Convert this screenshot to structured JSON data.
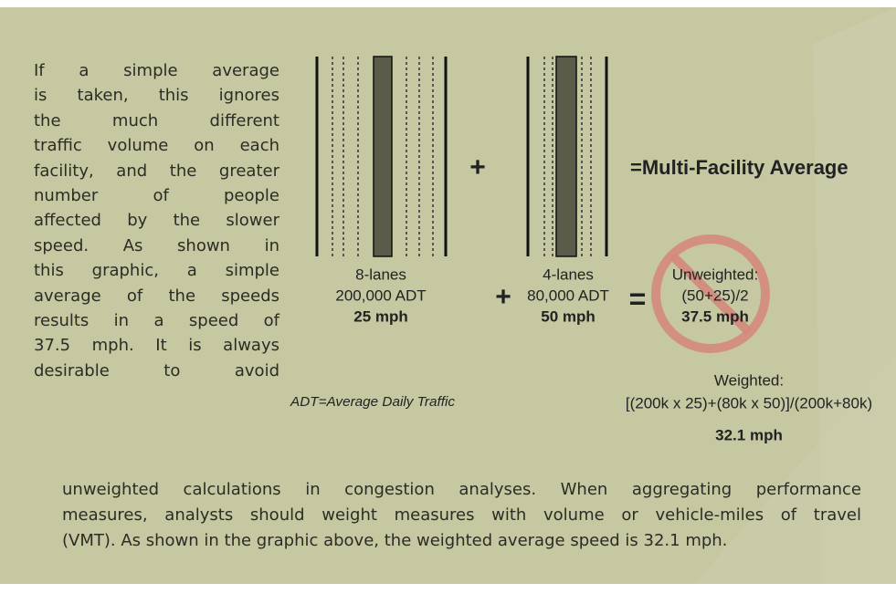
{
  "paragraph": {
    "left_lines": [
      "If a simple average",
      "is taken, this ignores",
      "the much different",
      "traffic volume on each",
      "facility, and the greater",
      "number of people",
      "affected by the slower",
      "speed. As shown in",
      "this graphic, a simple",
      "average of the speeds",
      "results in a speed of",
      "37.5 mph. It is always",
      "desirable to avoid"
    ],
    "bottom_lines": [
      "unweighted calculations in congestion analyses. When aggregating performance",
      "measures, analysts should weight measures with volume or vehicle-miles of travel",
      "(VMT). As shown in the graphic above, the weighted average speed is 32.1 mph."
    ]
  },
  "graphic": {
    "plus_top": "+",
    "result_heading": "=Multi-Facility Average",
    "facility_1": {
      "lanes": "8-lanes",
      "adt": "200,000 ADT",
      "speed": "25 mph"
    },
    "plus": "+",
    "facility_2": {
      "lanes": "4-lanes",
      "adt": "80,000 ADT",
      "speed": "50 mph"
    },
    "equals": "=",
    "unweighted": {
      "label": "Unweighted:",
      "formula": "(50+25)/2",
      "result": "37.5 mph"
    },
    "weighted": {
      "label": "Weighted:",
      "formula": "[(200k x 25)+(80k x 50)]/(200k+80k)",
      "result": "32.1 mph"
    },
    "note": "ADT=Average Daily Traffic"
  }
}
